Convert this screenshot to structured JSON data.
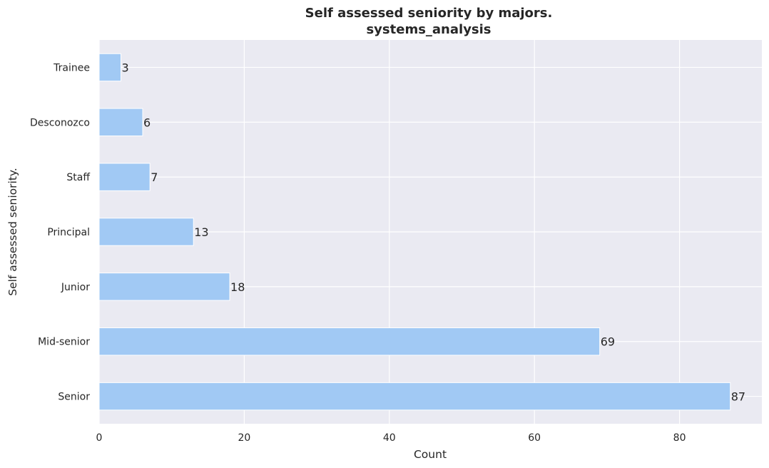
{
  "chart_data": {
    "type": "bar",
    "orientation": "horizontal",
    "title": "Self assessed seniority by majors.",
    "subtitle": "systems_analysis",
    "xlabel": "Count",
    "ylabel": "Self assessed seniority.",
    "categories": [
      "Trainee",
      "Desconozco",
      "Staff",
      "Principal",
      "Junior",
      "Mid-senior",
      "Senior"
    ],
    "values": [
      3,
      6,
      7,
      13,
      18,
      69,
      87
    ],
    "xlim": [
      0,
      91.35
    ],
    "xticks": [
      0,
      20,
      40,
      60,
      80
    ],
    "grid": true,
    "colors": {
      "bar": "#a1c9f4",
      "plot_background": "#eaeaf2",
      "grid": "#ffffff",
      "text": "#262626"
    }
  }
}
